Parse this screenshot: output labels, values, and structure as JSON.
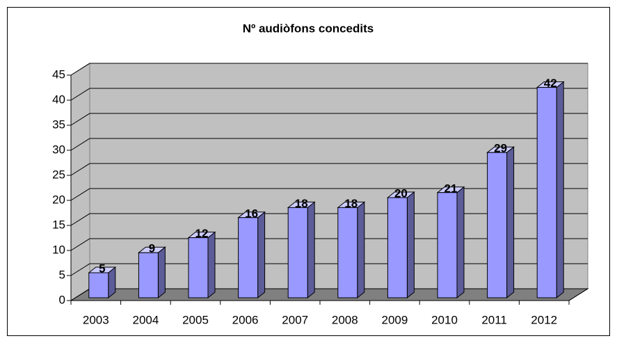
{
  "chart_data": {
    "type": "bar",
    "title": "Nº audiòfons concedits",
    "categories": [
      "2003",
      "2004",
      "2005",
      "2006",
      "2007",
      "2008",
      "2009",
      "2010",
      "2011",
      "2012"
    ],
    "values": [
      5,
      9,
      12,
      16,
      18,
      18,
      20,
      21,
      29,
      42
    ],
    "color": "#9999ff",
    "ylim": [
      0,
      45
    ],
    "yticks": [
      0,
      5,
      10,
      15,
      20,
      25,
      30,
      35,
      40,
      45
    ],
    "grid": true
  }
}
